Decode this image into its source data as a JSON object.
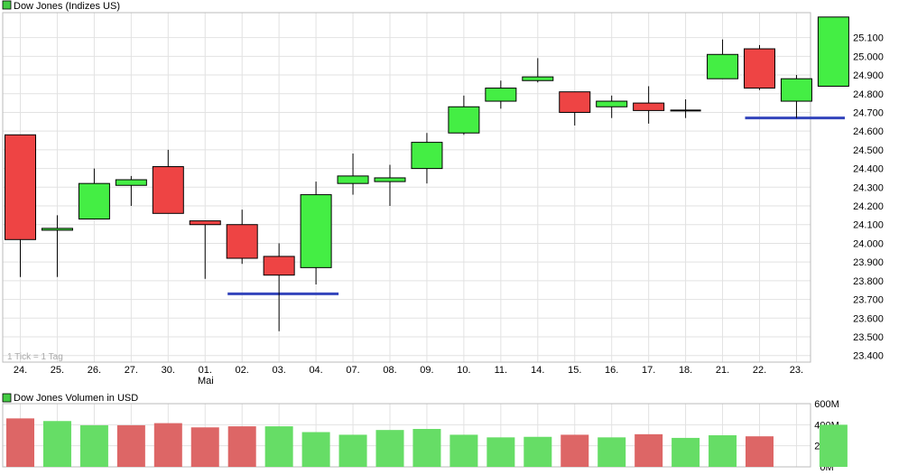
{
  "price_chart": {
    "legend_label": "Dow Jones (Indizes US)",
    "tick_note": "1 Tick = 1 Tag",
    "y_tick_labels": [
      "23.400",
      "23.500",
      "23.600",
      "23.700",
      "23.800",
      "23.900",
      "24.000",
      "24.100",
      "24.200",
      "24.300",
      "24.400",
      "24.500",
      "24.600",
      "24.700",
      "24.800",
      "24.900",
      "25.000",
      "25.100"
    ],
    "month_label": "Mai",
    "colors": {
      "up": "#44ee44",
      "down": "#ee4444",
      "support": "#3344bb",
      "legend_square": "#44cc44"
    }
  },
  "volume_chart": {
    "legend_label": "Dow Jones Volumen in USD",
    "y_tick_labels": [
      "0M",
      "200M",
      "400M",
      "600M"
    ],
    "colors": {
      "up": "#66dd66",
      "down": "#dd6666"
    }
  },
  "chart_data": [
    {
      "type": "candlestick",
      "title": "Dow Jones (Indizes US)",
      "ylim": [
        23350,
        25200
      ],
      "categories": [
        "24.",
        "25.",
        "26.",
        "27.",
        "30.",
        "01.",
        "02.",
        "03.",
        "04.",
        "07.",
        "08.",
        "09.",
        "10.",
        "11.",
        "14.",
        "15.",
        "16.",
        "17.",
        "18.",
        "21.",
        "22.",
        "23.",
        ""
      ],
      "open": [
        24580,
        24070,
        24130,
        24310,
        24410,
        24120,
        24100,
        23930,
        23870,
        24320,
        24330,
        24400,
        24590,
        24760,
        24870,
        24810,
        24730,
        24750,
        24710,
        24880,
        25040,
        24760,
        24840
      ],
      "high": [
        24580,
        24150,
        24400,
        24360,
        24500,
        24120,
        24180,
        24000,
        24330,
        24480,
        24420,
        24590,
        24790,
        24870,
        24990,
        24810,
        24790,
        24840,
        24770,
        25090,
        25060,
        24900,
        25210
      ],
      "low": [
        23820,
        23820,
        24130,
        24200,
        24160,
        23810,
        23890,
        23530,
        23780,
        24260,
        24200,
        24320,
        24580,
        24720,
        24860,
        24630,
        24670,
        24640,
        24670,
        24880,
        24820,
        24670,
        24840
      ],
      "close": [
        24020,
        24080,
        24320,
        24340,
        24160,
        24100,
        23920,
        23830,
        24260,
        24360,
        24350,
        24540,
        24730,
        24830,
        24890,
        24700,
        24760,
        24710,
        24710,
        25010,
        24830,
        24880,
        25210
      ],
      "support_lines": [
        {
          "value": 23730,
          "from": "02.",
          "to": "04."
        },
        {
          "value": 24670,
          "from": "22.",
          "to": ""
        }
      ]
    },
    {
      "type": "bar",
      "title": "Dow Jones Volumen in USD",
      "ylim": [
        0,
        600
      ],
      "unit": "M",
      "categories": [
        "24.",
        "25.",
        "26.",
        "27.",
        "30.",
        "01.",
        "02.",
        "03.",
        "04.",
        "07.",
        "08.",
        "09.",
        "10.",
        "11.",
        "14.",
        "15.",
        "16.",
        "17.",
        "18.",
        "21.",
        "22.",
        "23.",
        ""
      ],
      "values": [
        460,
        435,
        395,
        395,
        415,
        375,
        385,
        385,
        330,
        305,
        350,
        360,
        305,
        280,
        285,
        305,
        280,
        310,
        275,
        300,
        290,
        0,
        400
      ],
      "direction": [
        "down",
        "up",
        "up",
        "down",
        "down",
        "down",
        "down",
        "up",
        "up",
        "up",
        "up",
        "up",
        "up",
        "up",
        "up",
        "down",
        "up",
        "down",
        "up",
        "up",
        "down",
        "up",
        "up"
      ]
    }
  ]
}
